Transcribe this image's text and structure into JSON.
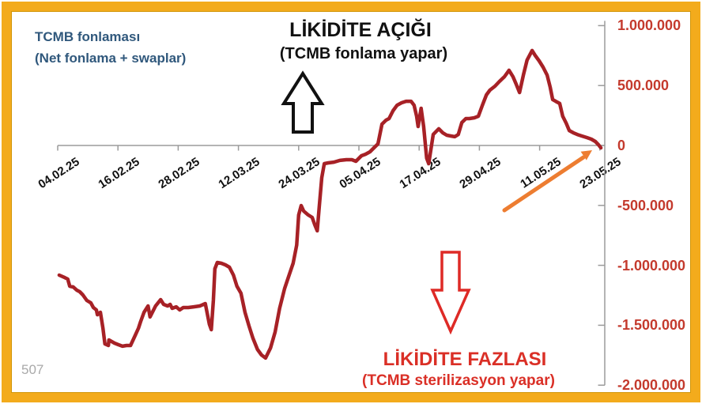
{
  "annotations": {
    "funding_note_line1": "TCMB fonlaması",
    "funding_note_line2": "(Net fonlama + swaplar)",
    "deficit_title": "LİKİDİTE AÇIĞI",
    "deficit_subtitle": "(TCMB fonlama yapar)",
    "surplus_title": "LİKİDİTE FAZLASI",
    "surplus_subtitle": "(TCMB sterilizasyon yapar)",
    "watermark": "507"
  },
  "colors": {
    "frame_amber": "#F3AB1C",
    "frame_amber_dark": "#D29507",
    "line_dark_red": "#A72126",
    "text_red": "#DA2F26",
    "axis_label_red": "#C43A2D",
    "note_blue": "#30587C",
    "trend_orange": "#ED7D31",
    "axis_gray": "#9B9B9B",
    "annotation_black": "#111111",
    "watermark_gray": "#A9A9A9"
  },
  "chart_data": {
    "type": "line",
    "series_name": "TCMB fonlaması (Net fonlama + swaplar)",
    "line_color": "#A72126",
    "grid": false,
    "x_axis": {
      "tick_labels": [
        "04.02.25",
        "16.02.25",
        "28.02.25",
        "12.03.25",
        "24.03.25",
        "05.04.25",
        "17.04.25",
        "29.04.25",
        "11.05.25",
        "23.05.25"
      ],
      "tick_day_offsets": [
        0,
        12,
        24,
        36,
        48,
        60,
        72,
        84,
        96,
        108
      ]
    },
    "y_axis": {
      "tick_labels": [
        "1.000.000",
        "500.000",
        "0",
        "-500.000",
        "-1.000.000",
        "-1.500.000",
        "-2.000.000"
      ],
      "tick_values": [
        1000000,
        500000,
        0,
        -500000,
        -1000000,
        -1500000,
        -2000000
      ],
      "range": [
        -2000000,
        1000000
      ],
      "side": "right"
    },
    "points": [
      [
        0.3,
        -1082000
      ],
      [
        1.4,
        -1102000
      ],
      [
        2.0,
        -1115000
      ],
      [
        2.4,
        -1174000
      ],
      [
        3.1,
        -1181000
      ],
      [
        3.8,
        -1207000
      ],
      [
        4.4,
        -1220000
      ],
      [
        5.0,
        -1247000
      ],
      [
        5.8,
        -1293000
      ],
      [
        6.6,
        -1313000
      ],
      [
        7.1,
        -1352000
      ],
      [
        7.7,
        -1372000
      ],
      [
        7.9,
        -1412000
      ],
      [
        8.5,
        -1392000
      ],
      [
        9.0,
        -1524000
      ],
      [
        9.4,
        -1656000
      ],
      [
        10.1,
        -1669000
      ],
      [
        10.2,
        -1623000
      ],
      [
        11.3,
        -1649000
      ],
      [
        12.1,
        -1662000
      ],
      [
        12.9,
        -1675000
      ],
      [
        13.7,
        -1669000
      ],
      [
        14.5,
        -1669000
      ],
      [
        15.3,
        -1596000
      ],
      [
        16.1,
        -1524000
      ],
      [
        16.5,
        -1471000
      ],
      [
        17.2,
        -1392000
      ],
      [
        18.0,
        -1339000
      ],
      [
        18.4,
        -1431000
      ],
      [
        19.5,
        -1339000
      ],
      [
        20.5,
        -1286000
      ],
      [
        21.1,
        -1326000
      ],
      [
        21.9,
        -1339000
      ],
      [
        22.4,
        -1326000
      ],
      [
        22.8,
        -1359000
      ],
      [
        23.6,
        -1346000
      ],
      [
        24.3,
        -1372000
      ],
      [
        25.0,
        -1352000
      ],
      [
        26.0,
        -1352000
      ],
      [
        27.1,
        -1346000
      ],
      [
        28.3,
        -1339000
      ],
      [
        29.4,
        -1319000
      ],
      [
        30.2,
        -1491000
      ],
      [
        30.6,
        -1537000
      ],
      [
        31.0,
        -1293000
      ],
      [
        31.3,
        -1029000
      ],
      [
        31.8,
        -976000
      ],
      [
        32.6,
        -983000
      ],
      [
        33.4,
        -996000
      ],
      [
        34.2,
        -1016000
      ],
      [
        35.0,
        -1082000
      ],
      [
        35.7,
        -1174000
      ],
      [
        36.5,
        -1233000
      ],
      [
        37.3,
        -1392000
      ],
      [
        38.1,
        -1504000
      ],
      [
        38.9,
        -1609000
      ],
      [
        39.8,
        -1702000
      ],
      [
        40.6,
        -1748000
      ],
      [
        41.4,
        -1774000
      ],
      [
        42.4,
        -1689000
      ],
      [
        43.3,
        -1557000
      ],
      [
        44.2,
        -1359000
      ],
      [
        45.2,
        -1194000
      ],
      [
        46.1,
        -1082000
      ],
      [
        46.9,
        -983000
      ],
      [
        47.6,
        -831000
      ],
      [
        48.0,
        -580000
      ],
      [
        48.5,
        -501000
      ],
      [
        49.0,
        -547000
      ],
      [
        49.9,
        -580000
      ],
      [
        50.7,
        -600000
      ],
      [
        51.2,
        -660000
      ],
      [
        51.7,
        -712000
      ],
      [
        52.1,
        -514000
      ],
      [
        52.6,
        -270000
      ],
      [
        53.1,
        -152000
      ],
      [
        53.9,
        -145000
      ],
      [
        55.0,
        -139000
      ],
      [
        56.2,
        -125000
      ],
      [
        57.5,
        -119000
      ],
      [
        58.6,
        -119000
      ],
      [
        59.4,
        -132000
      ],
      [
        60.5,
        -86000
      ],
      [
        61.3,
        -73000
      ],
      [
        62.2,
        -53000
      ],
      [
        63.0,
        -20000
      ],
      [
        63.8,
        13000
      ],
      [
        64.6,
        178000
      ],
      [
        65.4,
        211000
      ],
      [
        66.0,
        224000
      ],
      [
        66.8,
        290000
      ],
      [
        67.6,
        336000
      ],
      [
        68.5,
        356000
      ],
      [
        69.4,
        369000
      ],
      [
        70.4,
        369000
      ],
      [
        71.0,
        336000
      ],
      [
        71.5,
        244000
      ],
      [
        71.8,
        158000
      ],
      [
        72.4,
        310000
      ],
      [
        72.9,
        158000
      ],
      [
        73.5,
        -106000
      ],
      [
        73.9,
        -152000
      ],
      [
        74.8,
        92000
      ],
      [
        75.9,
        139000
      ],
      [
        76.7,
        106000
      ],
      [
        77.5,
        86000
      ],
      [
        78.3,
        79000
      ],
      [
        79.1,
        73000
      ],
      [
        79.8,
        92000
      ],
      [
        80.5,
        191000
      ],
      [
        81.3,
        224000
      ],
      [
        82.0,
        224000
      ],
      [
        83.0,
        231000
      ],
      [
        83.8,
        244000
      ],
      [
        84.6,
        336000
      ],
      [
        85.4,
        422000
      ],
      [
        86.1,
        462000
      ],
      [
        87.1,
        495000
      ],
      [
        88.0,
        534000
      ],
      [
        89.0,
        574000
      ],
      [
        89.9,
        627000
      ],
      [
        90.7,
        574000
      ],
      [
        91.3,
        514000
      ],
      [
        92.0,
        442000
      ],
      [
        92.8,
        594000
      ],
      [
        93.5,
        712000
      ],
      [
        94.5,
        792000
      ],
      [
        95.1,
        752000
      ],
      [
        95.9,
        706000
      ],
      [
        96.7,
        653000
      ],
      [
        97.5,
        587000
      ],
      [
        98.1,
        488000
      ],
      [
        98.6,
        383000
      ],
      [
        99.2,
        369000
      ],
      [
        100.0,
        350000
      ],
      [
        100.6,
        244000
      ],
      [
        101.3,
        185000
      ],
      [
        101.9,
        125000
      ],
      [
        102.7,
        106000
      ],
      [
        103.5,
        92000
      ],
      [
        104.4,
        79000
      ],
      [
        105.4,
        66000
      ],
      [
        106.3,
        53000
      ],
      [
        107.1,
        33000
      ],
      [
        107.7,
        7000
      ],
      [
        108.2,
        -20000
      ]
    ]
  }
}
